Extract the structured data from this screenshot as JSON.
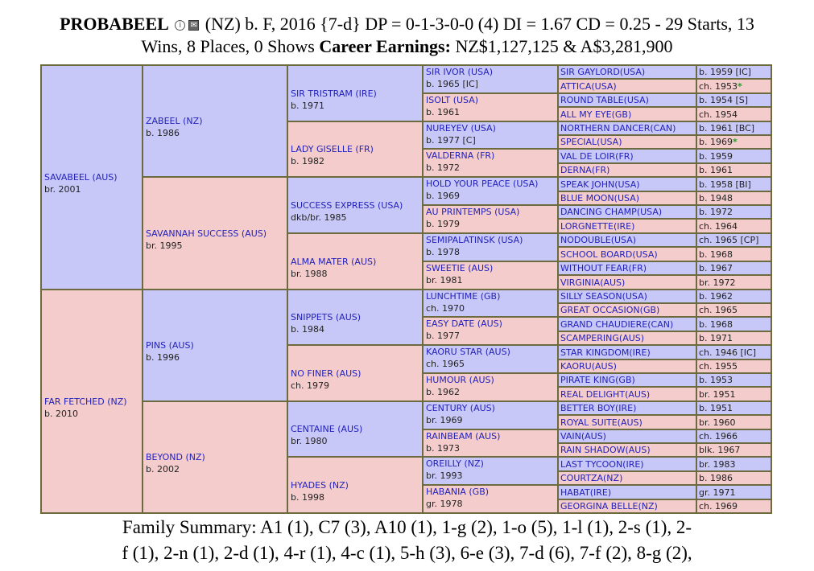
{
  "header": {
    "name": "PROBABEEL",
    "info_icon": "info-circle-icon",
    "mail_icon": "envelope-icon",
    "details": "(NZ) b. F, 2016 {7-d} DP = 0-1-3-0-0 (4) DI = 1.67   CD = 0.25 - 29 Starts, 13",
    "line2_prefix": "Wins, 8 Places, 0 Shows ",
    "earnings_label": "Career Earnings:",
    "earnings_value": " NZ$1,127,125 & A$3,281,900"
  },
  "colors": {
    "male": "#c8c8f8",
    "female": "#f5cccc",
    "border": "#6b6b3f",
    "link": "#2222bb",
    "star": "#2a9a2a"
  },
  "pedigree": {
    "g1": [
      {
        "name": "SAVABEEL",
        "country": "(AUS)",
        "detail": "br. 2001",
        "sex": "m"
      },
      {
        "name": "FAR FETCHED",
        "country": "(NZ)",
        "detail": "b. 2010",
        "sex": "f"
      }
    ],
    "g2": [
      {
        "name": "ZABEEL",
        "country": "(NZ)",
        "detail": "b. 1986",
        "sex": "m"
      },
      {
        "name": "SAVANNAH SUCCESS",
        "country": "(AUS)",
        "detail": "br. 1995",
        "sex": "f"
      },
      {
        "name": "PINS",
        "country": "(AUS)",
        "detail": "b. 1996",
        "sex": "m"
      },
      {
        "name": "BEYOND",
        "country": "(NZ)",
        "detail": "b. 2002",
        "sex": "f"
      }
    ],
    "g3": [
      {
        "name": "SIR TRISTRAM",
        "country": "(IRE)",
        "detail": "b. 1971",
        "sex": "m"
      },
      {
        "name": "LADY GISELLE",
        "country": "(FR)",
        "detail": "b. 1982",
        "sex": "f"
      },
      {
        "name": "SUCCESS EXPRESS",
        "country": "(USA)",
        "detail": "dkb/br. 1985",
        "sex": "m"
      },
      {
        "name": "ALMA MATER",
        "country": "(AUS)",
        "detail": "br. 1988",
        "sex": "f"
      },
      {
        "name": "SNIPPETS",
        "country": "(AUS)",
        "detail": "b. 1984",
        "sex": "m"
      },
      {
        "name": "NO FINER",
        "country": "(AUS)",
        "detail": "ch. 1979",
        "sex": "f"
      },
      {
        "name": "CENTAINE",
        "country": "(AUS)",
        "detail": "br. 1980",
        "sex": "m"
      },
      {
        "name": "HYADES",
        "country": "(NZ)",
        "detail": "b. 1998",
        "sex": "f"
      }
    ],
    "g4": [
      {
        "name": "SIR IVOR",
        "country": "(USA)",
        "detail": "b. 1965 [IC]",
        "sex": "m"
      },
      {
        "name": "ISOLT",
        "country": "(USA)",
        "detail": "b. 1961",
        "sex": "f"
      },
      {
        "name": "NUREYEV",
        "country": "(USA)",
        "detail": "b. 1977 [C]",
        "sex": "m"
      },
      {
        "name": "VALDERNA",
        "country": "(FR)",
        "detail": "b. 1972",
        "sex": "f"
      },
      {
        "name": "HOLD YOUR PEACE",
        "country": "(USA)",
        "detail": "b. 1969",
        "sex": "m"
      },
      {
        "name": "AU PRINTEMPS",
        "country": "(USA)",
        "detail": "b. 1979",
        "sex": "f"
      },
      {
        "name": "SEMIPALATINSK",
        "country": "(USA)",
        "detail": "b. 1978",
        "sex": "m"
      },
      {
        "name": "SWEETIE",
        "country": "(AUS)",
        "detail": "br. 1981",
        "sex": "f"
      },
      {
        "name": "LUNCHTIME",
        "country": "(GB)",
        "detail": "ch. 1970",
        "sex": "m"
      },
      {
        "name": "EASY DATE",
        "country": "(AUS)",
        "detail": "b. 1977",
        "sex": "f"
      },
      {
        "name": "KAORU STAR",
        "country": "(AUS)",
        "detail": "ch. 1965",
        "sex": "m"
      },
      {
        "name": "HUMOUR",
        "country": "(AUS)",
        "detail": "b. 1962",
        "sex": "f"
      },
      {
        "name": "CENTURY",
        "country": "(AUS)",
        "detail": "br. 1969",
        "sex": "m"
      },
      {
        "name": "RAINBEAM",
        "country": "(AUS)",
        "detail": "b. 1973",
        "sex": "f"
      },
      {
        "name": "OREILLY",
        "country": "(NZ)",
        "detail": "br. 1993",
        "sex": "m"
      },
      {
        "name": "HABANIA",
        "country": "(GB)",
        "detail": "gr. 1978",
        "sex": "f"
      }
    ],
    "g5": [
      {
        "name": "SIR GAYLORD",
        "country": "(USA)",
        "detail": "b. 1959 [IC]",
        "sex": "m",
        "star": ""
      },
      {
        "name": "ATTICA",
        "country": "(USA)",
        "detail": "ch. 1953",
        "sex": "f",
        "star": "*"
      },
      {
        "name": "ROUND TABLE",
        "country": "(USA)",
        "detail": "b. 1954 [S]",
        "sex": "m",
        "star": ""
      },
      {
        "name": "ALL MY EYE",
        "country": "(GB)",
        "detail": "ch. 1954",
        "sex": "f",
        "star": ""
      },
      {
        "name": "NORTHERN DANCER",
        "country": "(CAN)",
        "detail": "b. 1961 [BC]",
        "sex": "m",
        "star": ""
      },
      {
        "name": "SPECIAL",
        "country": "(USA)",
        "detail": "b. 1969",
        "sex": "f",
        "star": "*"
      },
      {
        "name": "VAL DE LOIR",
        "country": "(FR)",
        "detail": "b. 1959",
        "sex": "m",
        "star": ""
      },
      {
        "name": "DERNA",
        "country": "(FR)",
        "detail": "b. 1961",
        "sex": "f",
        "star": ""
      },
      {
        "name": "SPEAK JOHN",
        "country": "(USA)",
        "detail": "b. 1958 [BI]",
        "sex": "m",
        "star": ""
      },
      {
        "name": "BLUE MOON",
        "country": "(USA)",
        "detail": "b. 1948",
        "sex": "f",
        "star": ""
      },
      {
        "name": "DANCING CHAMP",
        "country": "(USA)",
        "detail": "b. 1972",
        "sex": "m",
        "star": ""
      },
      {
        "name": "LORGNETTE",
        "country": "(IRE)",
        "detail": "ch. 1964",
        "sex": "f",
        "star": ""
      },
      {
        "name": "NODOUBLE",
        "country": "(USA)",
        "detail": "ch. 1965 [CP]",
        "sex": "m",
        "star": ""
      },
      {
        "name": "SCHOOL BOARD",
        "country": "(USA)",
        "detail": "b. 1968",
        "sex": "f",
        "star": ""
      },
      {
        "name": "WITHOUT FEAR",
        "country": "(FR)",
        "detail": "b. 1967",
        "sex": "m",
        "star": ""
      },
      {
        "name": "VIRGINIA",
        "country": "(AUS)",
        "detail": "br. 1972",
        "sex": "f",
        "star": ""
      },
      {
        "name": "SILLY SEASON",
        "country": "(USA)",
        "detail": "b. 1962",
        "sex": "m",
        "star": ""
      },
      {
        "name": "GREAT OCCASION",
        "country": "(GB)",
        "detail": "ch. 1965",
        "sex": "f",
        "star": ""
      },
      {
        "name": "GRAND CHAUDIERE",
        "country": "(CAN)",
        "detail": "b. 1968",
        "sex": "m",
        "star": ""
      },
      {
        "name": "SCAMPERING",
        "country": "(AUS)",
        "detail": "b. 1971",
        "sex": "f",
        "star": ""
      },
      {
        "name": "STAR KINGDOM",
        "country": "(IRE)",
        "detail": "ch. 1946 [IC]",
        "sex": "m",
        "star": ""
      },
      {
        "name": "KAORU",
        "country": "(AUS)",
        "detail": "ch. 1955",
        "sex": "f",
        "star": ""
      },
      {
        "name": "PIRATE KING",
        "country": "(GB)",
        "detail": "b. 1953",
        "sex": "m",
        "star": ""
      },
      {
        "name": "REAL DELIGHT",
        "country": "(AUS)",
        "detail": "br. 1951",
        "sex": "f",
        "star": ""
      },
      {
        "name": "BETTER BOY",
        "country": "(IRE)",
        "detail": "b. 1951",
        "sex": "m",
        "star": ""
      },
      {
        "name": "ROYAL SUITE",
        "country": "(AUS)",
        "detail": "br. 1960",
        "sex": "f",
        "star": ""
      },
      {
        "name": "VAIN",
        "country": "(AUS)",
        "detail": "ch. 1966",
        "sex": "m",
        "star": ""
      },
      {
        "name": "RAIN SHADOW",
        "country": "(AUS)",
        "detail": "blk. 1967",
        "sex": "f",
        "star": ""
      },
      {
        "name": "LAST TYCOON",
        "country": "(IRE)",
        "detail": "br. 1983",
        "sex": "m",
        "star": ""
      },
      {
        "name": "COURTZA",
        "country": "(NZ)",
        "detail": "b. 1986",
        "sex": "f",
        "star": ""
      },
      {
        "name": "HABAT",
        "country": "(IRE)",
        "detail": "gr. 1971",
        "sex": "m",
        "star": ""
      },
      {
        "name": "GEORGINA BELLE",
        "country": "(NZ)",
        "detail": "ch. 1969",
        "sex": "f",
        "star": ""
      }
    ]
  },
  "footer": {
    "line1": "Family Summary: A1 (1), C7 (3), A10 (1), 1-g (2), 1-o (5), 1-l (1), 2-s (1), 2-",
    "line2": "f (1), 2-n (1), 2-d (1), 4-r (1), 4-c (1), 5-h (3), 6-e (3), 7-d (6), 7-f (2), 8-g (2),"
  }
}
